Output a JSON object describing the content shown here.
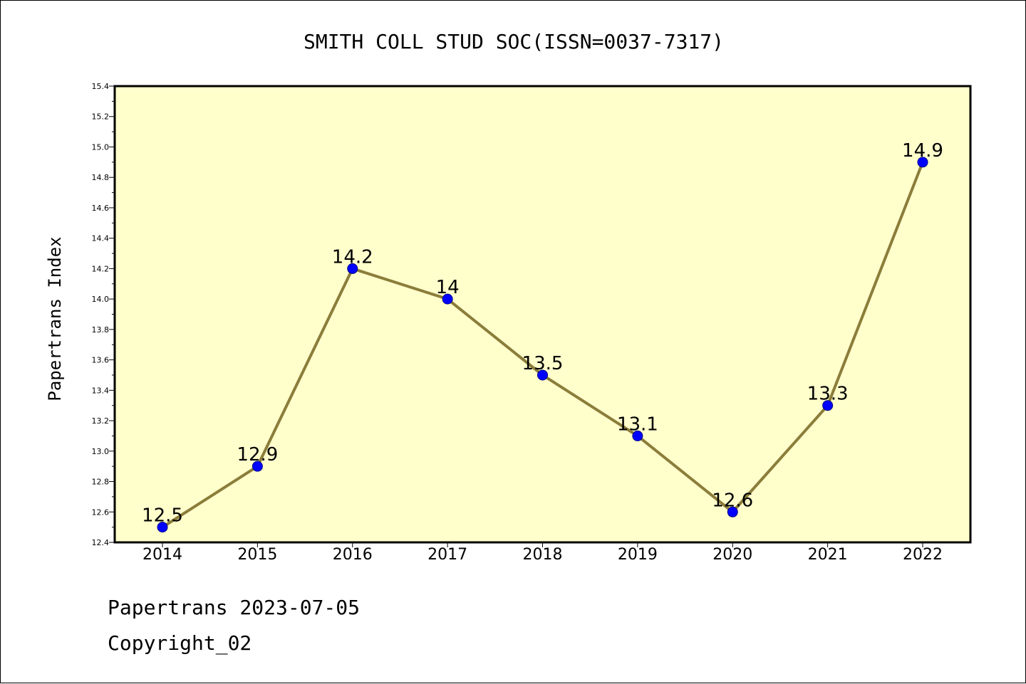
{
  "colors": {
    "plot_background": "#ffffcc",
    "line": "#8b7d3a",
    "marker": "#0000ff",
    "axis": "#000000"
  },
  "footer": {
    "date_text": "Papertrans 2023-07-05",
    "copyright_text": "Copyright_02"
  },
  "chart_data": {
    "type": "line",
    "title": "SMITH COLL STUD SOC(ISSN=0037-7317)",
    "xlabel": "",
    "ylabel": "Papertrans Index",
    "categories": [
      "2014",
      "2015",
      "2016",
      "2017",
      "2018",
      "2019",
      "2020",
      "2021",
      "2022"
    ],
    "values": [
      12.5,
      12.9,
      14.2,
      14.0,
      13.5,
      13.1,
      12.6,
      13.3,
      14.9
    ],
    "data_labels": [
      "12.5",
      "12.9",
      "14.2",
      "14",
      "13.5",
      "13.1",
      "12.6",
      "13.3",
      "14.9"
    ],
    "ylim": [
      12.4,
      15.4
    ],
    "yticks": [
      "12.4",
      "12.6",
      "12.8",
      "13.0",
      "13.2",
      "13.4",
      "13.6",
      "13.8",
      "14.0",
      "14.2",
      "14.4",
      "14.6",
      "14.8",
      "15.0",
      "15.2",
      "15.4"
    ],
    "grid": false,
    "legend": "none"
  }
}
